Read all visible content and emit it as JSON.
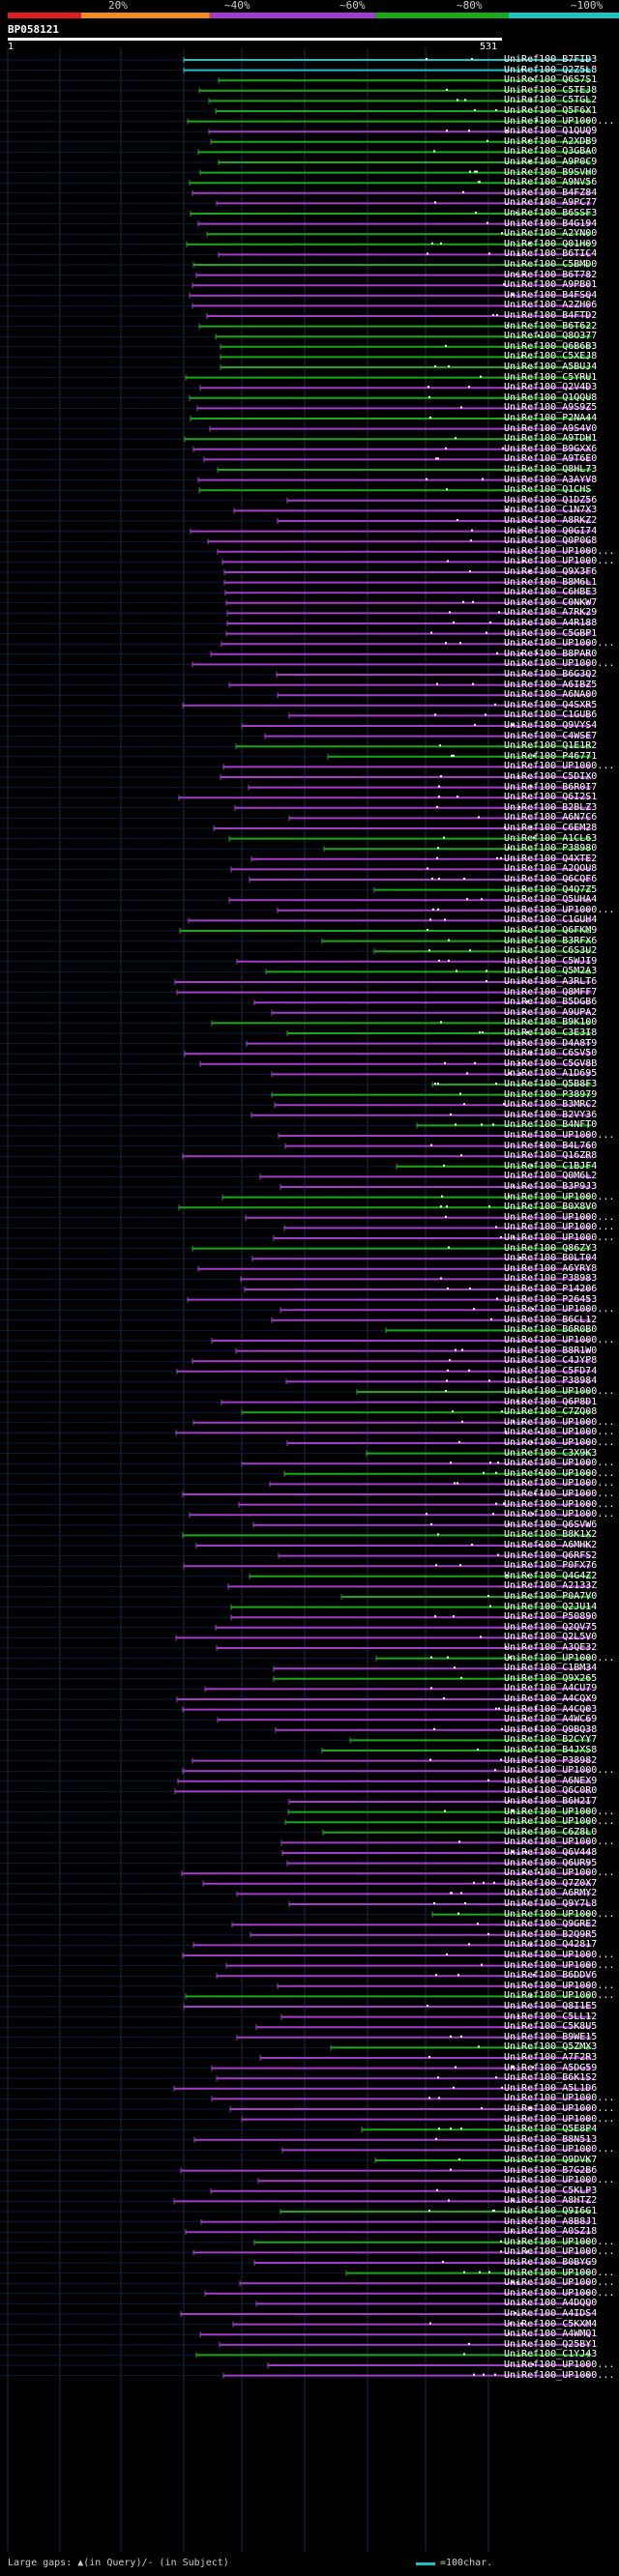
{
  "scale": {
    "labels": [
      "20%",
      "~40%",
      "~60%",
      "~80%",
      "~100%"
    ],
    "colors": [
      "#dd1c1c",
      "#f08a20",
      "#a33cc8",
      "#18a818",
      "#1ac4c4"
    ]
  },
  "query": {
    "id": "BP058121",
    "start": "1",
    "end": "531"
  },
  "legend": {
    "gaps": "Large gaps: ▲(in Query)/- (in Subject)",
    "scale": "=100char."
  },
  "hits": [
    "UniRef100_B7FID3",
    "UniRef100_Q2Z5L8",
    "UniRef100_Q6S7S1",
    "UniRef100_C5TEJ8",
    "UniRef100_C5TGL2",
    "UniRef100_Q5F6X1",
    "UniRef100_UP1000...",
    "UniRef100_Q1QUQ9",
    "UniRef100_A2XDB9",
    "UniRef100_Q3GBA0",
    "UniRef100_A9P0C9",
    "UniRef100_B9SVH0",
    "UniRef100_A9NV56",
    "UniRef100_B4FZ84",
    "UniRef100_A9PC77",
    "UniRef100_B6SSF3",
    "UniRef100_B4G194",
    "UniRef100_A2YN00",
    "UniRef100_Q01H09",
    "UniRef100_B6TIC4",
    "UniRef100_C5BMD0",
    "UniRef100_B6T782",
    "UniRef100_A9PB01",
    "UniRef100_B4FSQ4",
    "UniRef100_A2ZH06",
    "UniRef100_B4FTD2",
    "UniRef100_B6T622",
    "UniRef100_Q8O377",
    "UniRef100_Q6B6B3",
    "UniRef100_C5XEJ8",
    "UniRef100_A5BUJ4",
    "UniRef100_C5YRU1",
    "UniRef100_Q2V4D3",
    "UniRef100_Q1QQU8",
    "UniRef100_A9S9Z5",
    "UniRef100_P2NA44",
    "UniRef100_A9S4V0",
    "UniRef100_A9TDH1",
    "UniRef100_B9GXX6",
    "UniRef100_A9T6E0",
    "UniRef100_Q8HL73",
    "UniRef100_A3AYV8",
    "UniRef100_Q1CHS",
    "UniRef100_Q1DZ56",
    "UniRef100_C1N7X3",
    "UniRef100_A8RKZ2",
    "UniRef100_Q0GI74",
    "UniRef100_Q0P0G8",
    "UniRef100_UP1000...",
    "UniRef100_UP1000...",
    "UniRef100_Q9X3F6",
    "UniRef100_B8M6L1",
    "UniRef100_C6HBE3",
    "UniRef100_C0NKW7",
    "UniRef100_A7RK29",
    "UniRef100_A4R188",
    "UniRef100_C5GBP1",
    "UniRef100_UP1000...",
    "UniRef100_B8PAR0",
    "UniRef100_UP1000...",
    "UniRef100_B6G3Q2",
    "UniRef100_A6IBZ5",
    "UniRef100_A6NA00",
    "UniRef100_Q4SXR5",
    "UniRef100_C1GUB6",
    "UniRef100_Q9VYS4",
    "UniRef100_C4WSE7",
    "UniRef100_Q1E1R2",
    "UniRef100_P46771",
    "UniRef100_UP1000...",
    "UniRef100_C5DIX0",
    "UniRef100_B6R0I7",
    "UniRef100_Q6I2S1",
    "UniRef100_B2BLZ3",
    "UniRef100_A6N7C6",
    "UniRef100_C6EM28",
    "UniRef100_A1CL63",
    "UniRef100_P38980",
    "UniRef100_Q4XTE2",
    "UniRef100_A2QOU8",
    "UniRef100_Q6CQF6",
    "UniRef100_Q4Q7Z5",
    "UniRef100_Q5UHA4",
    "UniRef100_UP1000...",
    "UniRef100_C1GUH4",
    "UniRef100_Q6FKM9",
    "UniRef100_B3RFX6",
    "UniRef100_C6S3U2",
    "UniRef100_C5WJI9",
    "UniRef100_Q5M2A3",
    "UniRef100_A3RLT6",
    "UniRef100_Q8MFF7",
    "UniRef100_B5DGB6",
    "UniRef100_A9UPA2",
    "UniRef100_B9K100",
    "UniRef100_C3E3I8",
    "UniRef100_D4A8T9",
    "UniRef100_C6SV50",
    "UniRef100_C5GV8B",
    "UniRef100_A1D695",
    "UniRef100_Q5B8F3",
    "UniRef100_P38979",
    "UniRef100_B3MRC2",
    "UniRef100_B2VY36",
    "UniRef100_B4NFT0",
    "UniRef100_UP1000...",
    "UniRef100_B4L760",
    "UniRef100_Q16ZR8",
    "UniRef100_C1BJF4",
    "UniRef100_Q0M6L2",
    "UniRef100_B3P9J3",
    "UniRef100_UP1000...",
    "UniRef100_B0X8V0",
    "UniRef100_UP1000...",
    "UniRef100_UP1000...",
    "UniRef100_UP1000...",
    "UniRef100_Q86ZY3",
    "UniRef100_B0LT04",
    "UniRef100_A6YRY8",
    "UniRef100_P38983",
    "UniRef100_P14206",
    "UniRef100_P26453",
    "UniRef100_UP1000...",
    "UniRef100_B6CL12",
    "UniRef100_B6R0B0",
    "UniRef100_UP1000...",
    "UniRef100_B8R1W0",
    "UniRef100_C4JYP8",
    "UniRef100_C5FD74",
    "UniRef100_P38984",
    "UniRef100_UP1000...",
    "UniRef100_Q6P8D1",
    "UniRef100_C7ZQ08",
    "UniRef100_UP1000...",
    "UniRef100_UP1000...",
    "UniRef100_UP1000...",
    "UniRef100_C3X9K3",
    "UniRef100_UP1000...",
    "UniRef100_UP1000...",
    "UniRef100_UP1000...",
    "UniRef100_UP1000...",
    "UniRef100_UP1000...",
    "UniRef100_UP1000...",
    "UniRef100_Q6SVW6",
    "UniRef100_B8K1X2",
    "UniRef100_A6MHK2",
    "UniRef100_Q6RFS2",
    "UniRef100_P0FX76",
    "UniRef100_Q4G4Z2",
    "UniRef100_A2133Z",
    "UniRef100_P0A7V0",
    "UniRef100_Q2JU14",
    "UniRef100_P50890",
    "UniRef100_Q2QV75",
    "UniRef100_Q2L5V0",
    "UniRef100_A3QE32",
    "UniRef100_UP1000...",
    "UniRef100_C1BM34",
    "UniRef100_Q9X265",
    "UniRef100_A4CU79",
    "UniRef100_A4CQX9",
    "UniRef100_A4CQ03",
    "UniRef100_A4WC69",
    "UniRef100_Q9BQ38",
    "UniRef100_B2CYY7",
    "UniRef100_B4JXS8",
    "UniRef100_P38982",
    "UniRef100_UP1000...",
    "UniRef100_A6NEX9",
    "UniRef100_Q6C0R0",
    "UniRef100_B6H2I7",
    "UniRef100_UP1000...",
    "UniRef100_UP1000...",
    "UniRef100_C6Z8L0",
    "UniRef100_UP1000...",
    "UniRef100_Q6V448",
    "UniRef100_Q6UR95",
    "UniRef100_UP1000...",
    "UniRef100_Q7Z0X7",
    "UniRef100_A6RMY2",
    "UniRef100_Q9Y7L8",
    "UniRef100_UP1000...",
    "UniRef100_Q9GRE2",
    "UniRef100_B2Q9R5",
    "UniRef100_Q42817",
    "UniRef100_UP1000...",
    "UniRef100_UP1000...",
    "UniRef100_B6DDV6",
    "UniRef100_UP1000...",
    "UniRef100_UP1000...",
    "UniRef100_Q8I1E5",
    "UniRef100_C5LL12",
    "UniRef100_C5K8U5",
    "UniRef100_B9WE15",
    "UniRef100_Q5ZMX3",
    "UniRef100_A7F2R3",
    "UniRef100_A5DG59",
    "UniRef100_B6K1S2",
    "UniRef100_A5L1D6",
    "UniRef100_UP1000...",
    "UniRef100_UP1000...",
    "UniRef100_UP1000...",
    "UniRef100_Q5E8P4",
    "UniRef100_B8N513",
    "UniRef100_UP1000...",
    "UniRef100_Q9DVK7",
    "UniRef100_B7G2B6",
    "UniRef100_UP1000...",
    "UniRef100_C5KLP3",
    "UniRef100_A8HTZ2",
    "UniRef100_Q9I6G1",
    "UniRef100_A8B8J1",
    "UniRef100_A0SZ18",
    "UniRef100_UP1000...",
    "UniRef100_UP1000...",
    "UniRef100_B0BYG9",
    "UniRef100_UP1000...",
    "UniRef100_UP1000...",
    "UniRef100_UP1000...",
    "UniRef100_A4DQQ0",
    "UniRef100_A4IDS4",
    "UniRef100_C5KXM4",
    "UniRef100_A4WMQ1",
    "UniRef100_Q25BY1",
    "UniRef100_C1YJ43",
    "UniRef100_UP1000...",
    "UniRef100_UP1000..."
  ]
}
